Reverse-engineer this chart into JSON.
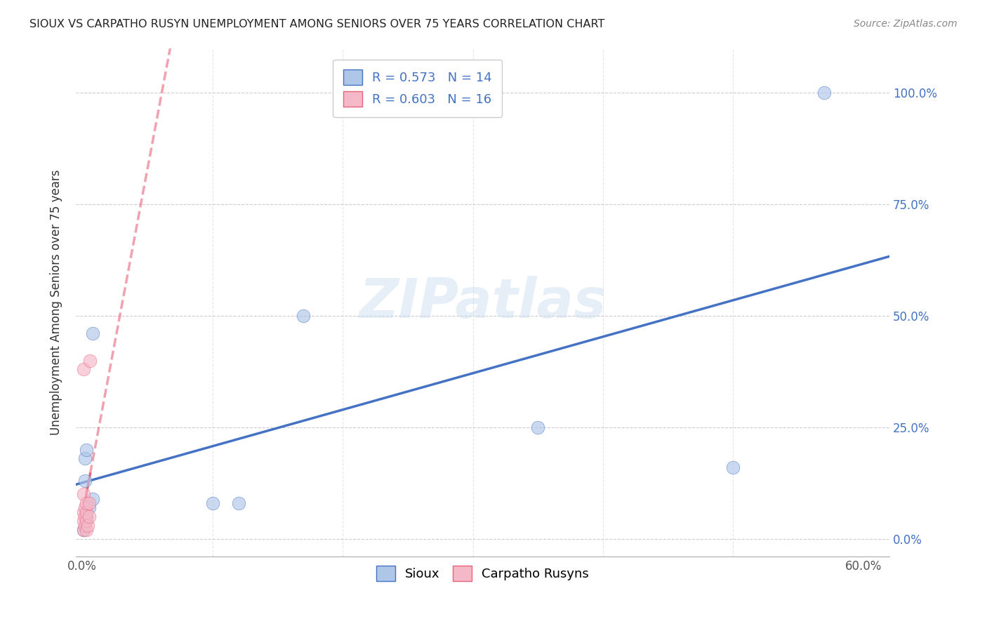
{
  "title": "SIOUX VS CARPATHO RUSYN UNEMPLOYMENT AMONG SENIORS OVER 75 YEARS CORRELATION CHART",
  "source": "Source: ZipAtlas.com",
  "ylabel": "Unemployment Among Seniors over 75 years",
  "watermark": "ZIPatlas",
  "sioux_R": 0.573,
  "sioux_N": 14,
  "carpatho_R": 0.603,
  "carpatho_N": 16,
  "sioux_color": "#aec6e8",
  "sioux_line_color": "#4472c4",
  "carpatho_color": "#f4b8c8",
  "carpatho_line_color": "#e8637a",
  "sioux_x": [
    0.001,
    0.002,
    0.002,
    0.003,
    0.003,
    0.005,
    0.008,
    0.008,
    0.1,
    0.12,
    0.17,
    0.35,
    0.5,
    0.57
  ],
  "sioux_y": [
    0.02,
    0.18,
    0.13,
    0.2,
    0.05,
    0.07,
    0.09,
    0.46,
    0.08,
    0.08,
    0.5,
    0.25,
    0.16,
    1.0
  ],
  "carpatho_x": [
    0.001,
    0.001,
    0.001,
    0.001,
    0.001,
    0.002,
    0.002,
    0.002,
    0.003,
    0.003,
    0.003,
    0.003,
    0.004,
    0.005,
    0.005,
    0.006
  ],
  "carpatho_y": [
    0.02,
    0.04,
    0.06,
    0.1,
    0.38,
    0.03,
    0.05,
    0.07,
    0.02,
    0.04,
    0.06,
    0.08,
    0.03,
    0.05,
    0.08,
    0.4
  ],
  "xlim": [
    -0.005,
    0.62
  ],
  "ylim": [
    -0.04,
    1.1
  ],
  "xtick_left_label": "0.0%",
  "xtick_right_label": "60.0%",
  "yticks": [
    0.0,
    0.25,
    0.5,
    0.75,
    1.0
  ],
  "ytick_labels": [
    "0.0%",
    "25.0%",
    "50.0%",
    "75.0%",
    "100.0%"
  ],
  "legend_sioux": "Sioux",
  "legend_carpatho": "Carpatho Rusyns",
  "marker_size": 180,
  "marker_alpha": 0.65,
  "line_width": 2.5
}
